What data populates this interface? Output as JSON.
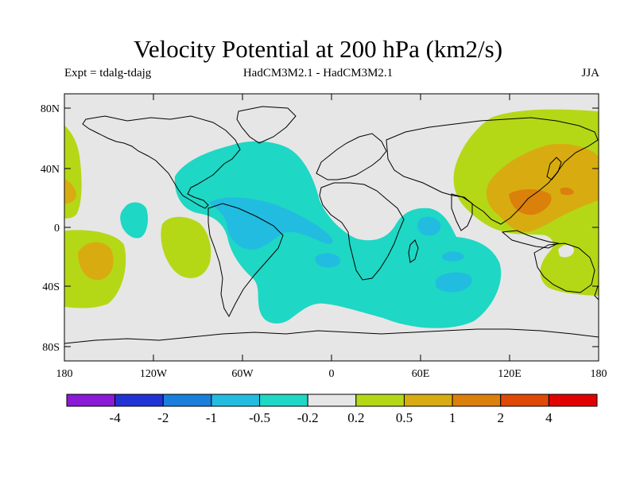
{
  "title": "Velocity Potential at 200 hPa (km2/s)",
  "subtitle_left": "Expt = tdalg-tdajg",
  "subtitle_center": "HadCM3M2.1 - HadCM3M2.1",
  "subtitle_right": "JJA",
  "lat_ticks": [
    "80N",
    "40N",
    "0",
    "40S",
    "80S"
  ],
  "lon_ticks": [
    "180",
    "120W",
    "60W",
    "0",
    "60E",
    "120E",
    "180"
  ],
  "colorbar": {
    "labels": [
      "-4",
      "-2",
      "-1",
      "-0.5",
      "-0.2",
      "0.2",
      "0.5",
      "1",
      "2",
      "4"
    ],
    "colors": [
      "#8a1ad6",
      "#2233d6",
      "#1a7fdc",
      "#22bce0",
      "#1ed7c4",
      "#e6e6e6",
      "#b4d816",
      "#d8ac10",
      "#dc800c",
      "#e04806",
      "#e00000"
    ]
  },
  "colors": {
    "background": "#e6e6e6",
    "neg_light": "#1ed7c4",
    "neg_mid": "#22bce0",
    "pos_light": "#b4d816",
    "pos_mid": "#d8ac10",
    "pos_strong": "#dc800c"
  }
}
